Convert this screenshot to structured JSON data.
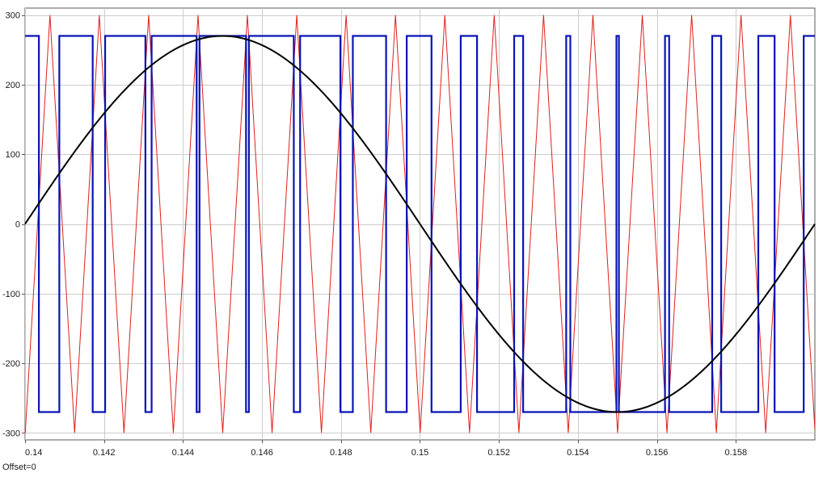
{
  "chart_data": {
    "type": "line",
    "title": "",
    "xlabel": "",
    "ylabel": "",
    "xlim": [
      0.14,
      0.16
    ],
    "ylim": [
      -310,
      310
    ],
    "grid": true,
    "x_ticks": [
      0.14,
      0.142,
      0.144,
      0.146,
      0.148,
      0.15,
      0.152,
      0.154,
      0.156,
      0.158
    ],
    "x_tick_labels": [
      "0.14",
      "0.142",
      "0.144",
      "0.146",
      "0.148",
      "0.15",
      "0.152",
      "0.154",
      "0.156",
      "0.158"
    ],
    "y_ticks": [
      300,
      200,
      100,
      0,
      -100,
      -200,
      -300
    ],
    "y_tick_labels": [
      "300",
      "200",
      "100",
      "0",
      "-100",
      "-200",
      "-300"
    ],
    "series": [
      {
        "key": "carrier",
        "kind": "triangle",
        "color": "#e0201b",
        "amplitude": 300,
        "period": 0.00125,
        "peak_times": [
          0.14063,
          0.14188,
          0.14313,
          0.14438,
          0.14563,
          0.14688,
          0.14813,
          0.14938,
          0.15063,
          0.15188,
          0.15313,
          0.15438,
          0.15563,
          0.15688,
          0.15813,
          0.15938
        ]
      },
      {
        "key": "reference",
        "kind": "sine",
        "color": "#000000",
        "amplitude": 270,
        "frequency_hz": 50,
        "x_start": 0.14,
        "x_end": 0.16,
        "phase_zero_at": 0.14
      },
      {
        "key": "pwm",
        "kind": "step",
        "color": "#0a14b4",
        "high": 270,
        "low": -270,
        "x_start": 0.14,
        "x_end": 0.16,
        "initial_level": 270
      }
    ]
  },
  "footer": {
    "offset_text": "Offset=0"
  }
}
